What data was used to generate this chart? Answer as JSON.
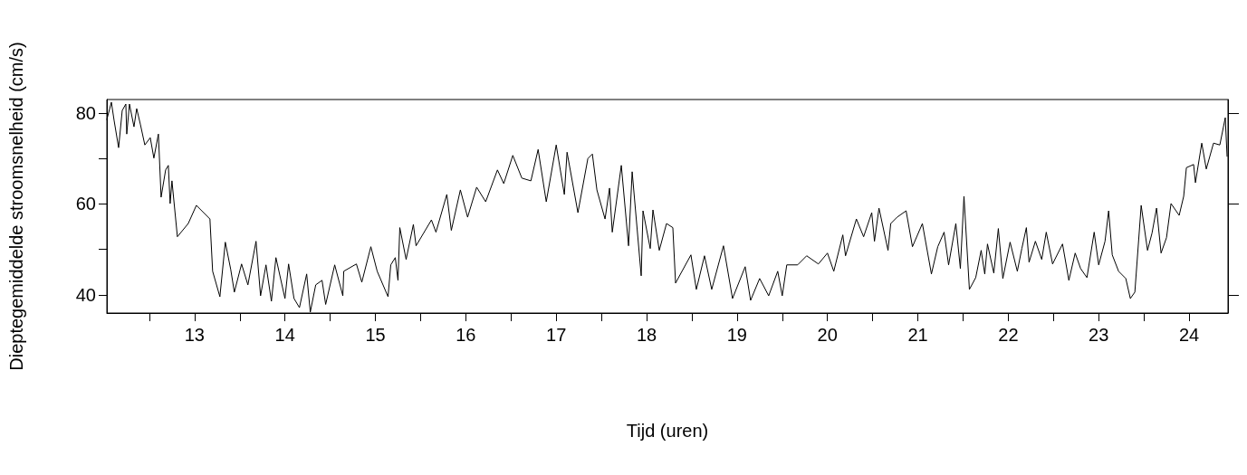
{
  "chart_data": {
    "type": "line",
    "xlabel": "Tijd (uren)",
    "ylabel": "Dieptegemiddelde stroomsnelheid (cm/s)",
    "x": [
      12.03,
      12.08,
      12.11,
      12.16,
      12.2,
      12.24,
      12.25,
      12.28,
      12.33,
      12.36,
      12.4,
      12.45,
      12.51,
      12.55,
      12.6,
      12.63,
      12.68,
      12.71,
      12.73,
      12.75,
      12.81,
      12.93,
      13.02,
      13.17,
      13.2,
      13.28,
      13.34,
      13.4,
      13.44,
      13.52,
      13.59,
      13.68,
      13.73,
      13.79,
      13.85,
      13.9,
      14.0,
      14.04,
      14.1,
      14.16,
      14.24,
      14.28,
      14.34,
      14.41,
      14.45,
      14.55,
      14.64,
      14.65,
      14.79,
      14.85,
      14.95,
      15.02,
      15.14,
      15.17,
      15.22,
      15.25,
      15.27,
      15.34,
      15.42,
      15.45,
      15.62,
      15.67,
      15.79,
      15.84,
      15.94,
      16.02,
      16.12,
      16.22,
      16.35,
      16.42,
      16.52,
      16.62,
      16.72,
      16.8,
      16.89,
      17.0,
      17.09,
      17.12,
      17.24,
      17.35,
      17.4,
      17.45,
      17.54,
      17.59,
      17.62,
      17.72,
      17.8,
      17.84,
      17.94,
      17.96,
      18.04,
      18.07,
      18.14,
      18.22,
      18.29,
      18.32,
      18.49,
      18.55,
      18.64,
      18.72,
      18.85,
      18.95,
      19.09,
      19.15,
      19.25,
      19.35,
      19.45,
      19.5,
      19.55,
      19.67,
      19.77,
      19.9,
      20.0,
      20.07,
      20.17,
      20.2,
      20.32,
      20.4,
      20.49,
      20.52,
      20.57,
      20.67,
      20.7,
      20.77,
      20.87,
      20.94,
      21.05,
      21.15,
      21.22,
      21.29,
      21.34,
      21.42,
      21.47,
      21.51,
      21.57,
      21.64,
      21.7,
      21.74,
      21.77,
      21.84,
      21.89,
      21.94,
      22.02,
      22.1,
      22.15,
      22.2,
      22.23,
      22.3,
      22.37,
      22.42,
      22.49,
      22.6,
      22.67,
      22.74,
      22.8,
      22.87,
      22.95,
      23.0,
      23.07,
      23.11,
      23.15,
      23.22,
      23.3,
      23.35,
      23.4,
      23.47,
      23.54,
      23.59,
      23.64,
      23.69,
      23.75,
      23.8,
      23.89,
      23.94,
      23.97,
      24.05,
      24.07,
      24.14,
      24.19,
      24.27,
      24.34,
      24.4,
      24.42
    ],
    "series": [
      {
        "color": "#000000",
        "values": [
          78.6,
          82.4,
          78.4,
          72.4,
          80.6,
          82.0,
          75.4,
          82.0,
          77.0,
          81.0,
          77.6,
          73.0,
          74.6,
          70.1,
          75.4,
          61.5,
          67.5,
          68.5,
          60.1,
          65.1,
          52.8,
          55.7,
          59.7,
          56.7,
          45.2,
          39.6,
          51.6,
          45.6,
          40.6,
          46.8,
          42.2,
          51.8,
          39.8,
          46.6,
          38.6,
          48.2,
          39.2,
          46.8,
          39.2,
          37.2,
          44.6,
          36.2,
          42.2,
          43.2,
          37.9,
          46.6,
          39.8,
          45.2,
          46.8,
          42.8,
          50.6,
          45.2,
          39.6,
          46.6,
          48.2,
          43.2,
          54.8,
          47.8,
          55.5,
          50.8,
          56.5,
          53.8,
          62.1,
          54.2,
          63.1,
          57.1,
          63.7,
          60.5,
          67.5,
          64.5,
          70.7,
          65.7,
          65.1,
          72.0,
          60.5,
          73.0,
          62.1,
          71.4,
          58.1,
          70.0,
          71.0,
          63.1,
          56.7,
          63.5,
          53.8,
          68.5,
          50.8,
          67.1,
          44.2,
          58.5,
          50.2,
          58.7,
          49.8,
          55.7,
          54.8,
          42.6,
          48.8,
          41.2,
          48.6,
          41.2,
          50.8,
          39.2,
          46.2,
          38.8,
          43.6,
          39.8,
          45.2,
          39.8,
          46.6,
          46.6,
          48.6,
          46.8,
          49.2,
          45.2,
          53.2,
          48.6,
          56.7,
          52.8,
          58.1,
          51.8,
          59.1,
          49.8,
          55.7,
          57.1,
          58.5,
          50.6,
          55.7,
          44.6,
          50.6,
          53.8,
          46.6,
          55.7,
          45.8,
          61.7,
          41.2,
          43.8,
          49.8,
          44.6,
          51.2,
          44.8,
          54.6,
          43.6,
          51.6,
          45.2,
          50.2,
          54.8,
          47.2,
          51.8,
          47.8,
          53.8,
          46.8,
          51.2,
          43.2,
          49.2,
          45.8,
          43.8,
          53.8,
          46.6,
          51.8,
          58.5,
          48.8,
          45.2,
          43.6,
          39.2,
          40.6,
          59.7,
          49.8,
          53.6,
          59.1,
          49.2,
          52.6,
          60.1,
          57.5,
          61.7,
          68.0,
          68.7,
          64.7,
          73.4,
          67.7,
          73.4,
          73.0,
          79.0,
          70.5
        ]
      }
    ],
    "xlim": [
      12.03,
      24.43
    ],
    "xticks": [
      {
        "value": 12.5,
        "label": null
      },
      13,
      {
        "value": 13.5,
        "label": null
      },
      14,
      {
        "value": 14.5,
        "label": null
      },
      15,
      {
        "value": 15.5,
        "label": null
      },
      16,
      {
        "value": 16.5,
        "label": null
      },
      17,
      {
        "value": 17.5,
        "label": null
      },
      18,
      {
        "value": 18.5,
        "label": null
      },
      19,
      {
        "value": 19.5,
        "label": null
      },
      20,
      {
        "value": 20.5,
        "label": null
      },
      21,
      {
        "value": 21.5,
        "label": null
      },
      22,
      {
        "value": 22.5,
        "label": null
      },
      23,
      {
        "value": 23.5,
        "label": null
      },
      24
    ],
    "ylim": [
      36,
      83
    ],
    "yticks": [
      40,
      {
        "value": 50,
        "label": null
      },
      60,
      {
        "value": 70,
        "label": null
      },
      80
    ],
    "grid": false,
    "marker": "none",
    "line_style": "solid"
  }
}
